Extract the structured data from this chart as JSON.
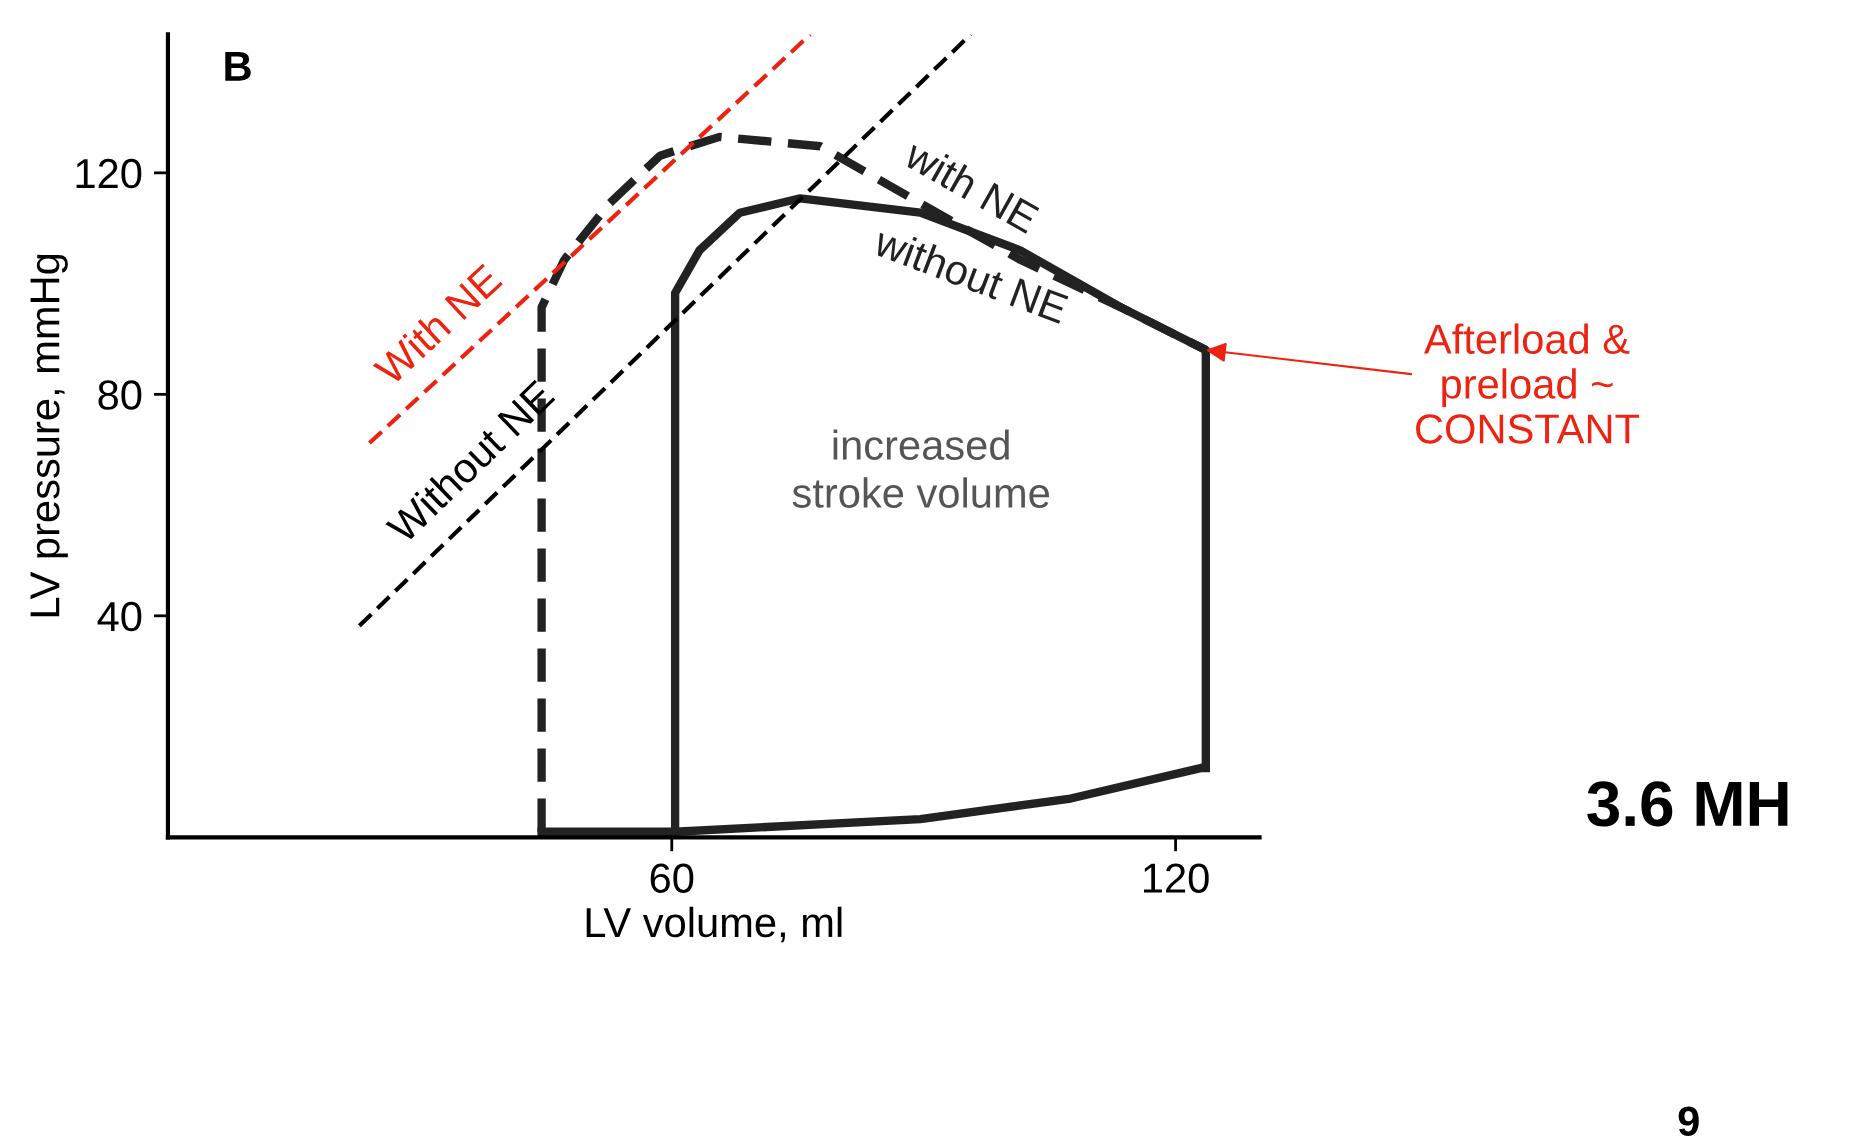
{
  "chart_data": {
    "type": "line",
    "xlabel": "LV volume, ml",
    "ylabel": "LV pressure, mmHg",
    "xlim": [
      0,
      130
    ],
    "ylim": [
      0,
      145
    ],
    "xticks": [
      60,
      120
    ],
    "yticks": [
      40,
      80,
      120
    ],
    "grid": false,
    "legend": false,
    "marker": "none",
    "series": [
      {
        "name": "with NE",
        "color": "#222222",
        "line_style": "dashed",
        "x": [
          44.5,
          44.5,
          47.2,
          52.6,
          58.6,
          65.7,
          77.7,
          89.6,
          101.5,
          113.5,
          123.6
        ],
        "values": [
          1,
          95.7,
          104.3,
          114.5,
          123.1,
          126.5,
          124.8,
          114.5,
          104.3,
          95.7,
          88
        ]
      },
      {
        "name": "without NE",
        "color": "#222222",
        "line_style": "solid",
        "x": [
          60.4,
          60.4,
          63.3,
          68.1,
          75.3,
          89.6,
          101.5,
          113.5,
          123.6,
          123.6
        ],
        "values": [
          1,
          98.3,
          106,
          112.8,
          115.4,
          112.8,
          106,
          95.7,
          88,
          12.5
        ]
      },
      {
        "color": "#222222",
        "line_style": "solid",
        "x": [
          44.5,
          60.4,
          89.6,
          107.5,
          123
        ],
        "values": [
          1,
          1,
          3.3,
          7,
          12.5
        ]
      },
      {
        "name": "With NE",
        "color": "#ee2211",
        "line_style": "dashed",
        "x": [
          24,
          76.5
        ],
        "values": [
          71.2,
          145
        ]
      },
      {
        "name": "Without NE",
        "color": "#000000",
        "line_style": "dashed",
        "x": [
          22.8,
          95.6
        ],
        "values": [
          38.2,
          145
        ]
      }
    ],
    "annotations": [
      "B",
      "increased\nstroke volume",
      {
        "text": "Afterload &\npreload ~\nCONSTANT",
        "x": 123.6,
        "y": 88
      },
      "3.6 MH",
      "9"
    ]
  }
}
